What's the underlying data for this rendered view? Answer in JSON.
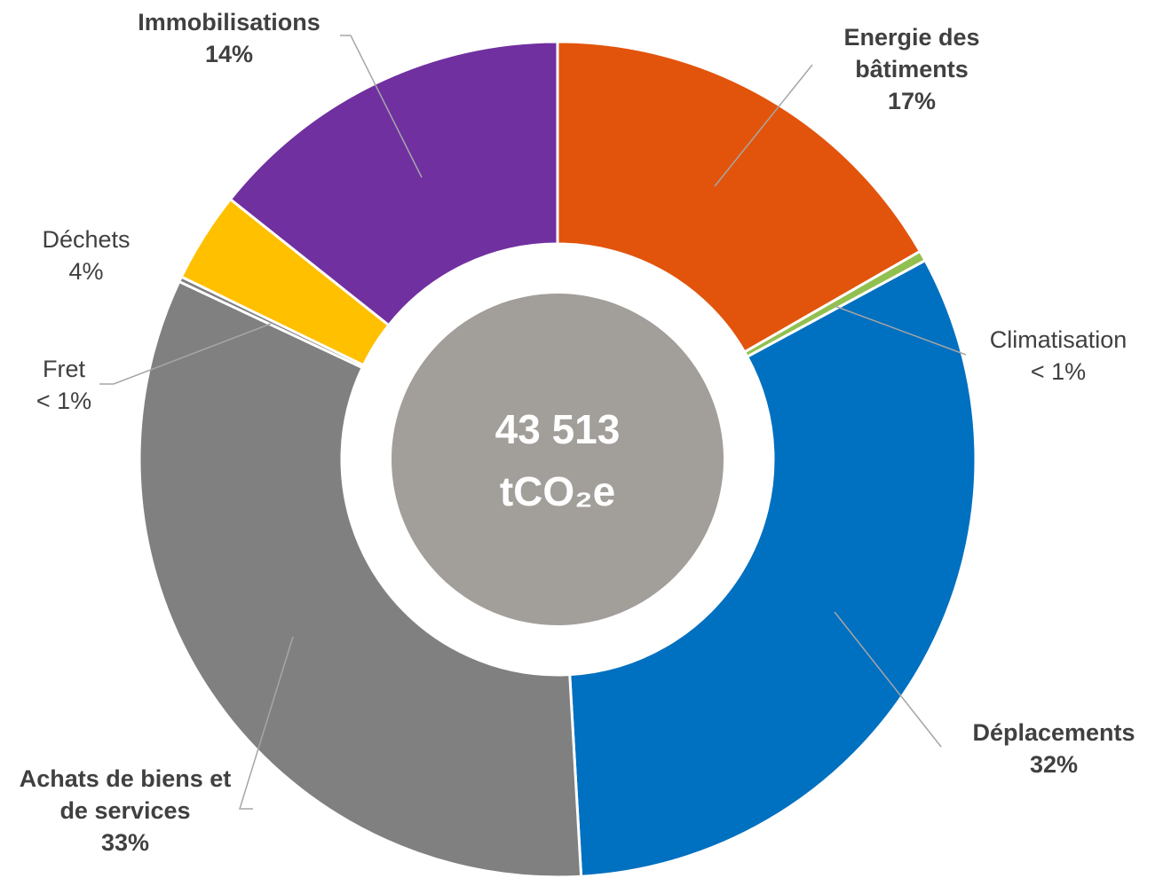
{
  "chart_data": {
    "type": "donut",
    "categories": [
      "Energie des bâtiments",
      "Climatisation",
      "Déplacements",
      "Achats de biens et de services",
      "Fret",
      "Déchets",
      "Immobilisations"
    ],
    "values": [
      16.7,
      0.4,
      32,
      32.9,
      0.2,
      3.5,
      14.3
    ],
    "value_labels": [
      "17%",
      "< 1%",
      "32%",
      "33%",
      "< 1%",
      "4%",
      "14%"
    ],
    "colors": [
      "#e2540c",
      "#92c050",
      "#0070c0",
      "#808080",
      "#7f7f7f",
      "#ffc000",
      "#7030a0"
    ],
    "center_value": "43 513",
    "center_unit": "tCO₂e"
  }
}
